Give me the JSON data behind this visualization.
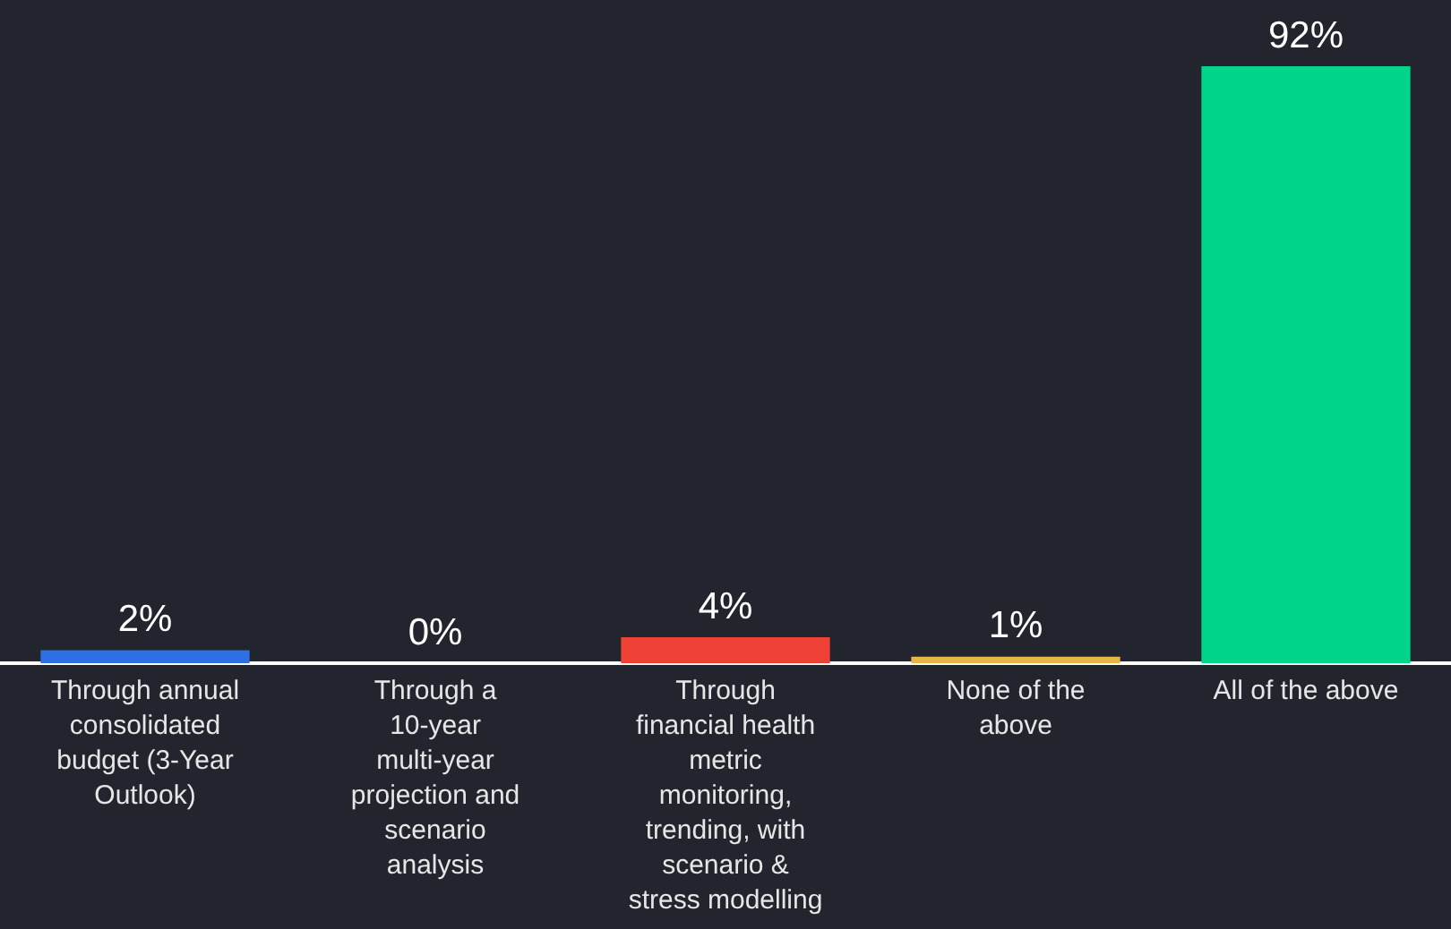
{
  "chart_data": {
    "type": "bar",
    "categories": [
      "Through annual consolidated budget (3-Year Outlook)",
      "Through a 10-year multi-year projection and scenario analysis",
      "Through financial health metric monitoring, trending, with scenario & stress modelling",
      "None of the above",
      "All of the above"
    ],
    "values": [
      2,
      0,
      4,
      1,
      92
    ],
    "colors": [
      "#2f6fe4",
      "#2a6ad8",
      "#ef4136",
      "#e7b548",
      "#00d68a"
    ],
    "value_labels": [
      "2%",
      "0%",
      "4%",
      "1%",
      "92%"
    ]
  }
}
